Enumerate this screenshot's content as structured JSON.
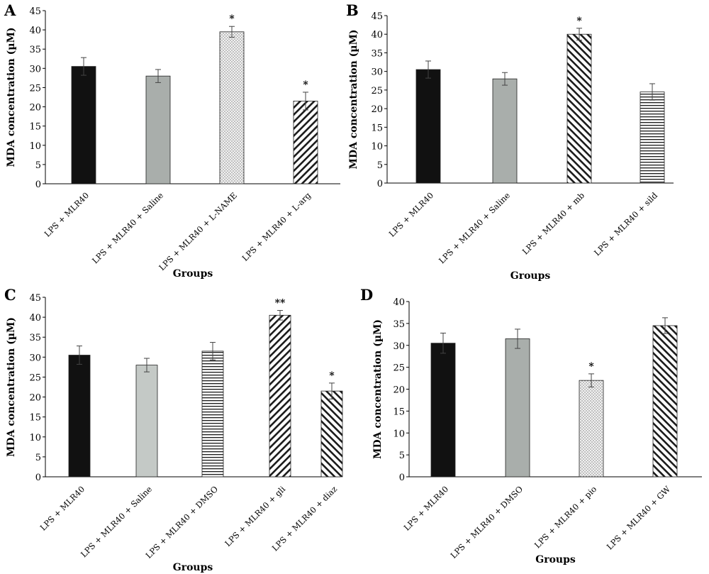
{
  "chart_data": [
    {
      "type": "bar",
      "panel": "A",
      "categories": [
        "LPS + MLR40",
        "LPS + MLR40 + Saline",
        "LPS + MLR40 + L-NAME",
        "LPS + MLR40 + L-arg"
      ],
      "values": [
        30.5,
        28.0,
        39.5,
        21.5
      ],
      "errors": [
        2.3,
        1.7,
        1.4,
        2.3
      ],
      "annotations": [
        "",
        "",
        "*",
        "*"
      ],
      "fills": [
        "solid-black",
        "solid-gray",
        "dots",
        "diagonal-back"
      ],
      "xlabel": "Groups",
      "ylabel": "MDA concentration (µM)",
      "ylim": [
        0,
        45
      ],
      "yticks": [
        0,
        5,
        10,
        15,
        20,
        25,
        30,
        35,
        40,
        45
      ]
    },
    {
      "type": "bar",
      "panel": "B",
      "categories": [
        "LPS + MLR40",
        "LPS + MLR40 + Saline",
        "LPS + MLR40 + mb",
        "LPS + MLR40 + sild"
      ],
      "values": [
        30.5,
        28.0,
        40.0,
        24.5
      ],
      "errors": [
        2.3,
        1.7,
        1.6,
        2.2
      ],
      "annotations": [
        "",
        "",
        "*",
        ""
      ],
      "fills": [
        "solid-black",
        "solid-gray",
        "diagonal-forward",
        "horizontal"
      ],
      "xlabel": "Groups",
      "ylabel": "MDA concentration (µM)",
      "ylim": [
        0,
        45
      ],
      "yticks": [
        0,
        5,
        10,
        15,
        20,
        25,
        30,
        35,
        40,
        45
      ]
    },
    {
      "type": "bar",
      "panel": "C",
      "categories": [
        "LPS + MLR40",
        "LPS + MLR40 + Saline",
        "LPS + MLR40 + DMSO",
        "LPS + MLR40 + gli",
        "LPS + MLR40 + diaz"
      ],
      "values": [
        30.5,
        28.0,
        31.5,
        40.5,
        21.5
      ],
      "errors": [
        2.3,
        1.7,
        2.2,
        1.2,
        2.0
      ],
      "annotations": [
        "",
        "",
        "",
        "**",
        "*"
      ],
      "fills": [
        "solid-black",
        "solid-light-gray",
        "horizontal",
        "diagonal-back",
        "diagonal-forward"
      ],
      "xlabel": "Groups",
      "ylabel": "MDA concentration (µM)",
      "ylim": [
        0,
        45
      ],
      "yticks": [
        0,
        5,
        10,
        15,
        20,
        25,
        30,
        35,
        40,
        45
      ]
    },
    {
      "type": "bar",
      "panel": "D",
      "categories": [
        "LPS + MLR40",
        "LPS + MLR40 + DMSO",
        "LPS + MLR40 + pio",
        "LPS + MLR40 + GW"
      ],
      "values": [
        30.5,
        31.5,
        22.0,
        34.5
      ],
      "errors": [
        2.3,
        2.2,
        1.5,
        1.8
      ],
      "annotations": [
        "",
        "",
        "*",
        ""
      ],
      "fills": [
        "solid-black",
        "solid-gray",
        "dots",
        "diagonal-forward"
      ],
      "xlabel": "Groups",
      "ylabel": "MDA concentration (µM)",
      "ylim": [
        0,
        40
      ],
      "yticks": [
        0,
        5,
        10,
        15,
        20,
        25,
        30,
        35,
        40
      ]
    }
  ],
  "colors": {
    "solid_black": "#111111",
    "solid_gray": "#a9aeab",
    "solid_light_gray": "#c4c9c6",
    "hatch_stroke": "#1a1a1a"
  }
}
